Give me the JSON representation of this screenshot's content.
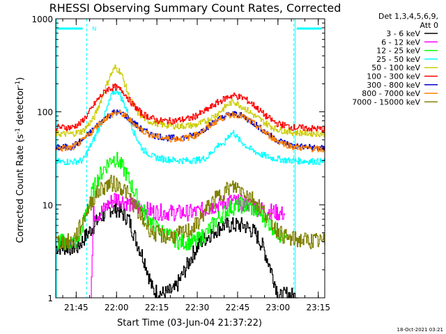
{
  "chart_data": {
    "type": "line",
    "title": "RHESSI Observing Summary Count Rates, Corrected",
    "xlabel": "Start Time (03-Jun-04 21:37:22)",
    "ylabel_main": "Corrected Count Rate (s",
    "ylabel_sup1": "-1",
    "ylabel_mid": " detector",
    "ylabel_sup2": "-1",
    "ylabel_end": ")",
    "y_scale": "log",
    "ylim": [
      1,
      1000
    ],
    "xlim_minutes_after_start": [
      0,
      100
    ],
    "x_ticks": [
      {
        "label": "21:45",
        "t": 7.6
      },
      {
        "label": "22:00",
        "t": 22.6
      },
      {
        "label": "22:15",
        "t": 37.6
      },
      {
        "label": "22:30",
        "t": 52.6
      },
      {
        "label": "22:45",
        "t": 67.6
      },
      {
        "label": "23:00",
        "t": 82.6
      },
      {
        "label": "23:15",
        "t": 97.6
      }
    ],
    "y_ticks": [
      {
        "label": "1",
        "v": 1
      },
      {
        "label": "10",
        "v": 10
      },
      {
        "label": "100",
        "v": 100
      },
      {
        "label": "1000",
        "v": 1000
      }
    ],
    "legend_header_1": "Det 1,3,4,5,6,9,",
    "legend_header_2": "Att 0",
    "legend_placement": "right",
    "night_marker_label": "N",
    "night_boundaries_minutes": [
      11.5,
      88.5
    ],
    "saa_top_bars_minutes": [
      [
        0,
        10
      ],
      [
        89,
        99
      ]
    ],
    "series": [
      {
        "name": "3 - 6 keV",
        "color": "#000000",
        "points": [
          [
            0,
            3.5
          ],
          [
            8,
            3.5
          ],
          [
            12,
            5
          ],
          [
            16,
            7
          ],
          [
            20,
            9
          ],
          [
            23,
            9
          ],
          [
            27,
            7
          ],
          [
            30,
            4
          ],
          [
            33,
            2.5
          ],
          [
            36,
            1.2
          ],
          [
            40,
            1.1
          ],
          [
            44,
            1.2
          ],
          [
            48,
            2
          ],
          [
            51,
            3
          ],
          [
            54,
            4
          ],
          [
            58,
            5
          ],
          [
            62,
            6
          ],
          [
            66,
            6
          ],
          [
            70,
            6
          ],
          [
            74,
            5
          ],
          [
            77,
            3.5
          ],
          [
            80,
            2
          ],
          [
            83,
            1
          ],
          [
            86,
            1.1
          ],
          [
            90,
            1
          ]
        ]
      },
      {
        "name": "6 - 12 keV",
        "color": "#ff00ff",
        "points": [
          [
            13,
            1
          ],
          [
            14,
            8
          ],
          [
            16,
            8
          ],
          [
            18,
            9
          ],
          [
            20,
            10.5
          ],
          [
            22,
            12
          ],
          [
            25,
            11
          ],
          [
            28,
            10
          ],
          [
            32,
            9
          ],
          [
            36,
            8.5
          ],
          [
            40,
            8.3
          ],
          [
            46,
            8.2
          ],
          [
            52,
            8.3
          ],
          [
            56,
            9
          ],
          [
            60,
            10
          ],
          [
            64,
            11
          ],
          [
            68,
            10.5
          ],
          [
            72,
            10
          ],
          [
            76,
            9
          ],
          [
            80,
            8.5
          ],
          [
            84,
            8
          ],
          [
            85,
            8
          ]
        ]
      },
      {
        "name": "12 - 25 keV",
        "color": "#00ff00",
        "points": [
          [
            0,
            4
          ],
          [
            8,
            4
          ],
          [
            10,
            6
          ],
          [
            12,
            10
          ],
          [
            14,
            15
          ],
          [
            16,
            20
          ],
          [
            18,
            25
          ],
          [
            21,
            32
          ],
          [
            23,
            30
          ],
          [
            26,
            22
          ],
          [
            29,
            14
          ],
          [
            32,
            9
          ],
          [
            36,
            6
          ],
          [
            40,
            5
          ],
          [
            46,
            4
          ],
          [
            52,
            4
          ],
          [
            56,
            5
          ],
          [
            60,
            7
          ],
          [
            64,
            9
          ],
          [
            68,
            10
          ],
          [
            72,
            9.5
          ],
          [
            76,
            8
          ],
          [
            80,
            6
          ],
          [
            84,
            4.5
          ],
          [
            86,
            4
          ]
        ]
      },
      {
        "name": "25 - 50 keV",
        "color": "#00ffff",
        "points": [
          [
            0,
            29
          ],
          [
            6,
            29
          ],
          [
            10,
            30
          ],
          [
            14,
            50
          ],
          [
            18,
            90
          ],
          [
            21,
            160
          ],
          [
            23,
            170
          ],
          [
            26,
            110
          ],
          [
            29,
            60
          ],
          [
            32,
            40
          ],
          [
            36,
            33
          ],
          [
            40,
            31
          ],
          [
            46,
            30
          ],
          [
            52,
            30
          ],
          [
            56,
            32
          ],
          [
            59,
            40
          ],
          [
            61,
            46
          ],
          [
            62,
            42
          ],
          [
            64,
            55
          ],
          [
            66,
            60
          ],
          [
            68,
            50
          ],
          [
            72,
            40
          ],
          [
            76,
            35
          ],
          [
            80,
            32
          ],
          [
            86,
            30
          ],
          [
            100,
            29
          ]
        ]
      },
      {
        "name": "50 - 100 keV",
        "color": "#cccc00",
        "points": [
          [
            0,
            58
          ],
          [
            6,
            58
          ],
          [
            10,
            62
          ],
          [
            14,
            85
          ],
          [
            17,
            140
          ],
          [
            20,
            240
          ],
          [
            22,
            300
          ],
          [
            24,
            270
          ],
          [
            27,
            150
          ],
          [
            30,
            100
          ],
          [
            34,
            80
          ],
          [
            40,
            72
          ],
          [
            46,
            70
          ],
          [
            52,
            72
          ],
          [
            56,
            80
          ],
          [
            60,
            95
          ],
          [
            64,
            120
          ],
          [
            66,
            130
          ],
          [
            70,
            110
          ],
          [
            74,
            90
          ],
          [
            78,
            75
          ],
          [
            82,
            65
          ],
          [
            88,
            60
          ],
          [
            100,
            58
          ]
        ]
      },
      {
        "name": "100 - 300 keV",
        "color": "#ff0000",
        "points": [
          [
            0,
            68
          ],
          [
            6,
            68
          ],
          [
            9,
            75
          ],
          [
            12,
            95
          ],
          [
            15,
            130
          ],
          [
            19,
            175
          ],
          [
            22,
            185
          ],
          [
            25,
            165
          ],
          [
            28,
            125
          ],
          [
            32,
            95
          ],
          [
            38,
            80
          ],
          [
            44,
            80
          ],
          [
            50,
            85
          ],
          [
            55,
            100
          ],
          [
            60,
            125
          ],
          [
            64,
            145
          ],
          [
            66,
            150
          ],
          [
            70,
            140
          ],
          [
            74,
            115
          ],
          [
            78,
            90
          ],
          [
            82,
            75
          ],
          [
            88,
            68
          ],
          [
            100,
            65
          ]
        ]
      },
      {
        "name": "300 - 800 keV",
        "color": "#0000cc",
        "points": [
          [
            0,
            41
          ],
          [
            6,
            42
          ],
          [
            10,
            50
          ],
          [
            14,
            65
          ],
          [
            18,
            85
          ],
          [
            22,
            100
          ],
          [
            25,
            95
          ],
          [
            28,
            80
          ],
          [
            32,
            64
          ],
          [
            36,
            56
          ],
          [
            42,
            52
          ],
          [
            48,
            53
          ],
          [
            52,
            57
          ],
          [
            56,
            68
          ],
          [
            60,
            82
          ],
          [
            64,
            93
          ],
          [
            67,
            95
          ],
          [
            70,
            88
          ],
          [
            74,
            74
          ],
          [
            78,
            60
          ],
          [
            82,
            50
          ],
          [
            88,
            43
          ],
          [
            100,
            40
          ]
        ]
      },
      {
        "name": "800 - 7000 keV",
        "color": "#ff8000",
        "points": [
          [
            0,
            40
          ],
          [
            6,
            41
          ],
          [
            10,
            49
          ],
          [
            14,
            64
          ],
          [
            18,
            84
          ],
          [
            22,
            98
          ],
          [
            25,
            94
          ],
          [
            28,
            79
          ],
          [
            32,
            63
          ],
          [
            36,
            55
          ],
          [
            42,
            51
          ],
          [
            48,
            52
          ],
          [
            52,
            56
          ],
          [
            56,
            67
          ],
          [
            60,
            81
          ],
          [
            64,
            92
          ],
          [
            67,
            94
          ],
          [
            70,
            87
          ],
          [
            74,
            73
          ],
          [
            78,
            59
          ],
          [
            82,
            49
          ],
          [
            88,
            42
          ],
          [
            100,
            39
          ]
        ]
      },
      {
        "name": "7000 - 15000 keV",
        "color": "#808000",
        "points": [
          [
            0,
            4
          ],
          [
            6,
            4
          ],
          [
            8,
            5
          ],
          [
            11,
            8
          ],
          [
            14,
            12
          ],
          [
            17,
            15
          ],
          [
            20,
            17
          ],
          [
            23,
            16.5
          ],
          [
            26,
            14
          ],
          [
            29,
            10
          ],
          [
            32,
            7
          ],
          [
            36,
            5
          ],
          [
            42,
            4.5
          ],
          [
            48,
            5
          ],
          [
            52,
            6
          ],
          [
            56,
            9
          ],
          [
            60,
            12
          ],
          [
            64,
            15
          ],
          [
            67,
            15.5
          ],
          [
            70,
            14
          ],
          [
            74,
            11
          ],
          [
            78,
            8
          ],
          [
            82,
            5.5
          ],
          [
            86,
            4.3
          ],
          [
            100,
            4
          ]
        ]
      }
    ]
  },
  "footer_timestamp": "18-Oct-2021 03:21"
}
